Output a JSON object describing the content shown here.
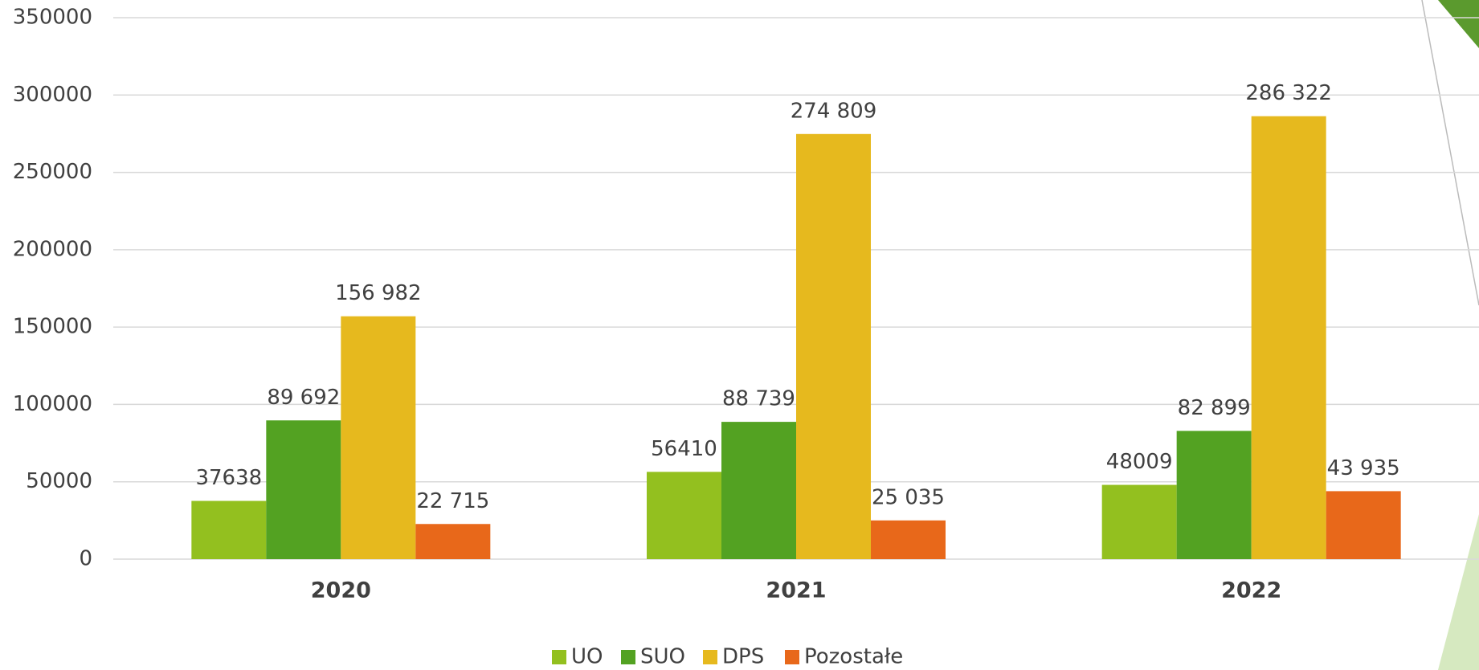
{
  "chart_data": {
    "type": "bar",
    "categories": [
      "2020",
      "2021",
      "2022"
    ],
    "series": [
      {
        "name": "UO",
        "color": "#93c01f",
        "values": [
          37638,
          56410,
          48009
        ]
      },
      {
        "name": "SUO",
        "color": "#53a222",
        "values": [
          89692,
          88739,
          82899
        ],
        "value_labels": [
          "89 692",
          "88 739",
          "82 899"
        ]
      },
      {
        "name": "DPS",
        "color": "#e6b91e",
        "values": [
          156982,
          274809,
          286322
        ],
        "value_labels": [
          "156 982",
          "274 809",
          "286 322"
        ]
      },
      {
        "name": "Pozostałe",
        "color": "#e8681a",
        "values": [
          22715,
          25035,
          43935
        ],
        "value_labels": [
          "22 715",
          "25 035",
          "43 935"
        ]
      }
    ],
    "ylim": [
      0,
      350000
    ],
    "yticks": [
      0,
      50000,
      100000,
      150000,
      200000,
      250000,
      300000,
      350000
    ],
    "grid": true,
    "legend": "bottom"
  }
}
